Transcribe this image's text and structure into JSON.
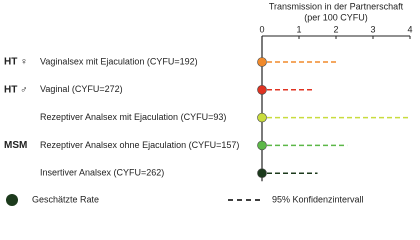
{
  "chart_data": {
    "type": "forest",
    "title": "Transmission in der Partnerschaft",
    "subtitle": "(per 100 CYFU)",
    "categories": [
      "Vaginalsex mit Ejaculation (CYFU=192)",
      "Vaginal (CYFU=272)",
      "Rezeptiver Analsex mit Ejaculation (CYFU=93)",
      "Rezeptiver Analsex ohne Ejaculation (CYFU=157)",
      "Insertiver Analsex (CYFU=262)"
    ],
    "groups": [
      "HT ♀",
      "HT ♂",
      null,
      "MSM",
      null
    ],
    "estimates": [
      0,
      0,
      0,
      0,
      0
    ],
    "lower": [
      0,
      0,
      0,
      0,
      0
    ],
    "upper": [
      2.0,
      1.4,
      4.0,
      2.3,
      1.5
    ],
    "colors": [
      "#f08a2c",
      "#e03322",
      "#c9dc3e",
      "#5cb848",
      "#1c3a1c"
    ],
    "xlim": [
      0,
      4
    ],
    "xticks": [
      0,
      1,
      2,
      3,
      4
    ],
    "legend": {
      "estimate": "Geschätzte Rate",
      "interval": "95% Konfidenzintervall",
      "estimate_color": "#1c3a1c",
      "interval_color": "#000000"
    }
  }
}
